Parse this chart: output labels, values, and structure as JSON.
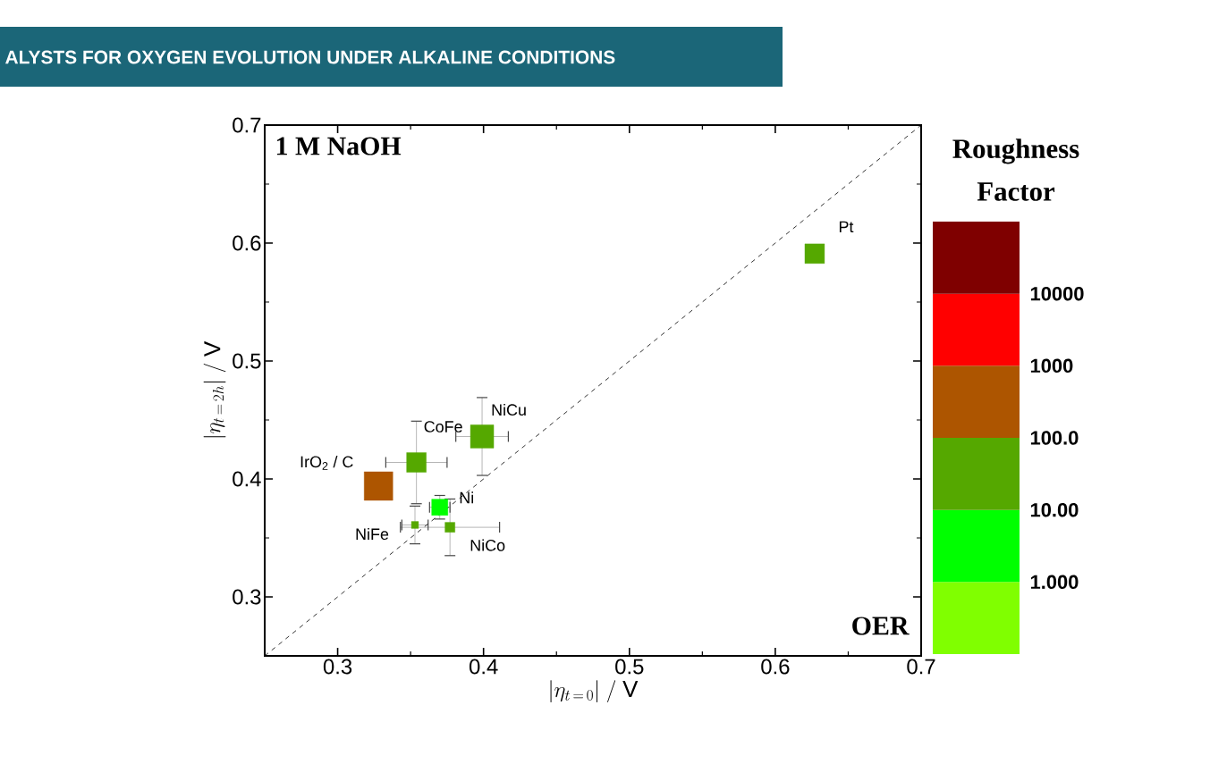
{
  "chart_data": {
    "type": "bubble",
    "title": "ALYSTS FOR OXYGEN EVOLUTION UNDER ALKALINE CONDITIONS",
    "xlabel": "|\\eta_{t\\,=\\,0}|\\;/\\;\\mathrm{V}",
    "ylabel": "|\\eta_{t\\,=\\,2h}|\\;/\\;\\mathrm{V}",
    "clabel": "Roughness Factor",
    "xlim": [
      0.25,
      0.7
    ],
    "ylim": [
      0.25,
      0.7
    ],
    "xticks": [
      0.3,
      0.4,
      0.5,
      0.6,
      0.7
    ],
    "yticks": [
      0.3,
      0.4,
      0.5,
      0.6,
      0.7
    ],
    "marker": "square",
    "grid": false,
    "series": [
      {
        "x": [
          0.627,
          0.328,
          0.354,
          0.399,
          0.37,
          0.353,
          0.377
        ],
        "values": [
          0.591,
          0.394,
          0.414,
          0.436,
          0.376,
          0.361,
          0.359
        ],
        "sizes": [
          0.47,
          1,
          0.47,
          0.66,
          0.32,
          0.06,
          0.12
        ],
        "colors": [
          "#55a800",
          "#ad5500",
          "#55a800",
          "#55a800",
          "#00ff00",
          "#55a800",
          "#55a800"
        ],
        "errors": [
          null,
          null,
          0.035,
          0.033,
          0.01,
          0.016,
          0.024
        ],
        "xerrors": [
          null,
          null,
          0.021,
          0.018,
          0.007,
          0.009,
          0.034
        ]
      },
      {
        "type": "line",
        "x": [
          0.25,
          0.7
        ],
        "values": [
          0.25,
          0.7
        ],
        "color": "#000000",
        "line_style": "dashed",
        "marker": "none"
      }
    ],
    "annotations": [
      {
        "text": "Pt",
        "x": 0.627,
        "y": 0.591
      },
      {
        "text": "IrO$_{2}$ / C",
        "x": 0.328,
        "y": 0.394
      },
      {
        "text": "CoFe",
        "x": 0.354,
        "y": 0.414
      },
      {
        "text": "NiCu",
        "x": 0.399,
        "y": 0.436
      },
      {
        "text": "Ni",
        "x": 0.37,
        "y": 0.376
      },
      {
        "text": "NiFe",
        "x": 0.353,
        "y": 0.361
      },
      {
        "text": "NiCo",
        "x": 0.377,
        "y": 0.359
      },
      "1 M NaOH",
      "OER",
      "1.000",
      "10.00",
      "100.0",
      "1000",
      "10000"
    ]
  }
}
